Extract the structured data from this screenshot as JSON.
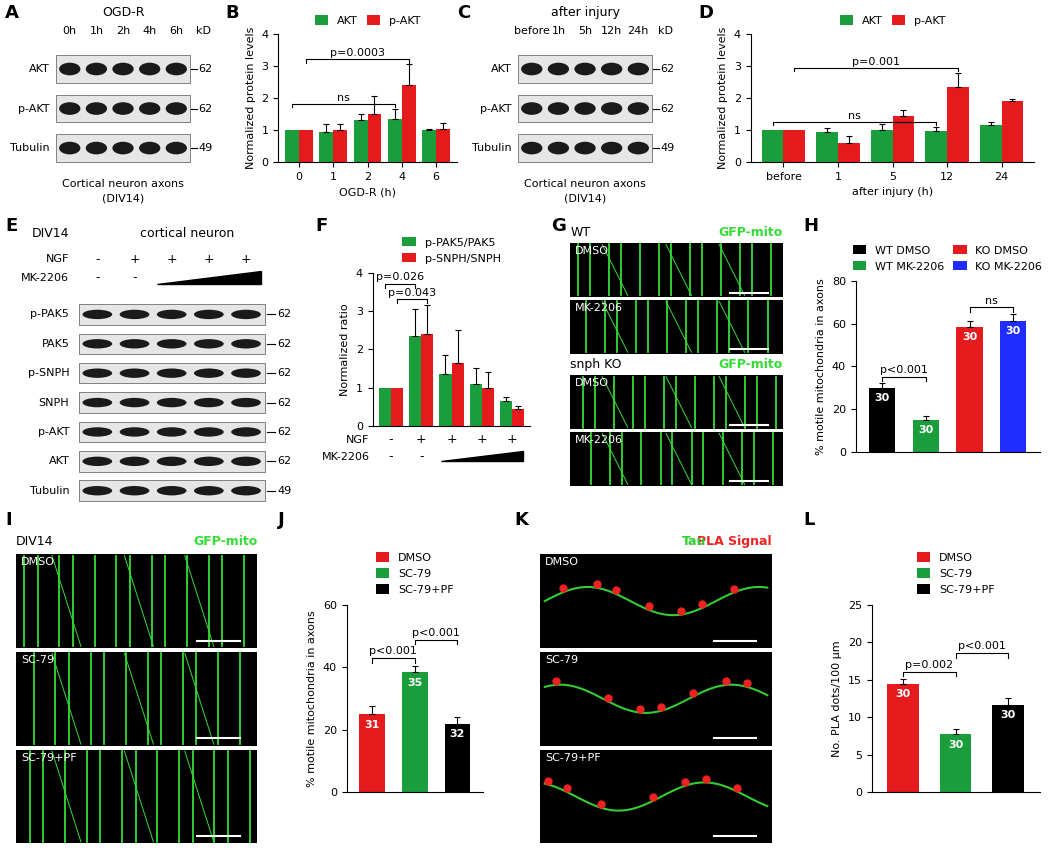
{
  "chart_data": [
    {
      "panel": "B",
      "type": "bar",
      "categories": [
        "0",
        "1",
        "2",
        "4",
        "6"
      ],
      "xlabel": "OGD-R (h)",
      "ylabel": "Normalized protein levels",
      "ylim": [
        0,
        4
      ],
      "yticks": [
        0,
        1,
        2,
        3,
        4
      ],
      "legend": "top",
      "series": [
        {
          "name": "AKT",
          "color": "#1a9e3b",
          "values": [
            1,
            0.95,
            1.3,
            1.35,
            1.0
          ],
          "errors": [
            0,
            0.25,
            0.2,
            0.3,
            0.03
          ]
        },
        {
          "name": "p-AKT",
          "color": "#e41a1c",
          "values": [
            1,
            1.0,
            1.5,
            2.4,
            1.02
          ],
          "errors": [
            0,
            0.2,
            0.55,
            0.65,
            0.2
          ]
        }
      ],
      "annotations": [
        {
          "text": "ns",
          "series": 0,
          "from": 0,
          "to": 3
        },
        {
          "text": "p=0.0003",
          "series": 1,
          "from": 0,
          "to": 3
        }
      ]
    },
    {
      "panel": "D",
      "type": "bar",
      "categories": [
        "before",
        "1",
        "5",
        "12",
        "24"
      ],
      "xlabel": "after injury (h)",
      "ylabel": "Normalized protein levels",
      "ylim": [
        0,
        4
      ],
      "yticks": [
        0,
        1,
        2,
        3,
        4
      ],
      "legend": "top",
      "series": [
        {
          "name": "AKT",
          "color": "#1a9e3b",
          "values": [
            1,
            0.95,
            1.0,
            0.98,
            1.15
          ],
          "errors": [
            0,
            0.12,
            0.2,
            0.1,
            0.1
          ]
        },
        {
          "name": "p-AKT",
          "color": "#e41a1c",
          "values": [
            1,
            0.6,
            1.45,
            2.35,
            1.92
          ],
          "errors": [
            0,
            0.2,
            0.17,
            0.42,
            0.06
          ]
        }
      ],
      "annotations": [
        {
          "text": "ns",
          "series": 0,
          "from": 0,
          "to": 3
        },
        {
          "text": "p=0.001",
          "series": 1,
          "from": 0,
          "to": 3
        }
      ]
    },
    {
      "panel": "F",
      "type": "bar",
      "categories": [
        null,
        null,
        null,
        null,
        null
      ],
      "ylabel": "Normalized ratio",
      "ylim": [
        0,
        4
      ],
      "yticks": [
        0,
        1,
        2,
        3,
        4
      ],
      "legend": "top",
      "tick_labels": "y",
      "conditions": [
        {
          "name": "NGF",
          "values": [
            "-",
            "+",
            "+",
            "+",
            "+"
          ]
        },
        {
          "name": "MK-2206",
          "values": [
            "-",
            "-",
            null,
            null,
            null
          ]
        }
      ],
      "series": [
        {
          "name": "p-PAK5/PAK5",
          "color": "#1a9e3b",
          "values": [
            1,
            2.35,
            1.35,
            1.1,
            0.65
          ],
          "errors": [
            0,
            0.7,
            0.5,
            0.4,
            0.1
          ]
        },
        {
          "name": "p-SNPH/SNPH",
          "color": "#e41a1c",
          "values": [
            1,
            2.4,
            1.65,
            1.0,
            0.45
          ],
          "errors": [
            0,
            0.75,
            0.85,
            0.4,
            0.08
          ]
        }
      ],
      "annotations": [
        {
          "text": "p=0.043",
          "series": 1,
          "from": 0,
          "to": 1
        },
        {
          "text": "p=0.026",
          "series": 0,
          "from": 0,
          "to": 1
        }
      ]
    },
    {
      "panel": "H",
      "type": "bar",
      "categories": [
        "WT DMSO",
        "WT MK-2206",
        "KO DMSO",
        "KO MK-2206"
      ],
      "colors": [
        "#000000",
        "#1a9e3b",
        "#e41a1c",
        "#1f2eff"
      ],
      "values": [
        30,
        15,
        58.5,
        61.5
      ],
      "errors": [
        2,
        1.5,
        3,
        3
      ],
      "n": [
        30,
        30,
        30,
        30
      ],
      "ylabel": "% motile mitochondria in axons",
      "ylim": [
        0,
        80
      ],
      "yticks": [
        0,
        20,
        40,
        60,
        80
      ],
      "legend": "top",
      "tick_labels": "y",
      "annotations": [
        {
          "text": "p<0.001",
          "from": 0,
          "to": 1
        },
        {
          "text": "ns",
          "from": 2,
          "to": 3
        }
      ]
    },
    {
      "panel": "J",
      "type": "bar",
      "categories": [
        "DMSO",
        "SC-79",
        "SC-79+PF"
      ],
      "colors": [
        "#e41a1c",
        "#1a9e3b",
        "#000000"
      ],
      "values": [
        25,
        38.5,
        22
      ],
      "errors": [
        2.5,
        2,
        2
      ],
      "n": [
        31,
        35,
        32
      ],
      "ylabel": "% motile mitochondria in axons",
      "ylim": [
        0,
        60
      ],
      "yticks": [
        0,
        20,
        40,
        60
      ],
      "legend": "top",
      "tick_labels": "y",
      "annotations": [
        {
          "text": "p<0.001",
          "from": 0,
          "to": 1
        },
        {
          "text": "p<0.001",
          "from": 1,
          "to": 2
        }
      ]
    },
    {
      "panel": "L",
      "type": "bar",
      "categories": [
        "DMSO",
        "SC-79",
        "SC-79+PF"
      ],
      "colors": [
        "#e41a1c",
        "#1a9e3b",
        "#000000"
      ],
      "values": [
        14.5,
        7.8,
        11.7
      ],
      "errors": [
        0.6,
        0.6,
        0.9
      ],
      "n": [
        30,
        30,
        30
      ],
      "ylabel": "No. PLA dots/100 µm",
      "ylim": [
        0,
        25
      ],
      "yticks": [
        0,
        5,
        10,
        15,
        20,
        25
      ],
      "legend": "top",
      "tick_labels": "y",
      "annotations": [
        {
          "text": "p=0.002",
          "from": 0,
          "to": 1
        },
        {
          "text": "p<0.001",
          "from": 1,
          "to": 2
        }
      ]
    }
  ],
  "blots": [
    {
      "panel": "A",
      "header": [
        "OGD-R"
      ],
      "lanes": [
        "0h",
        "1h",
        "2h",
        "4h",
        "6h"
      ],
      "kD_title": "kD",
      "rows": [
        {
          "name": "AKT",
          "kD": 62
        },
        {
          "name": "p-AKT",
          "kD": 62
        },
        {
          "name": "Tubulin",
          "kD": 49
        }
      ],
      "caption": [
        "Cortical neuron axons",
        "(DIV14)"
      ]
    },
    {
      "panel": "C",
      "header": [
        "after injury"
      ],
      "lanes": [
        "before",
        "1h",
        "5h",
        "12h",
        "24h"
      ],
      "kD_title": "kD",
      "rows": [
        {
          "name": "AKT",
          "kD": 62
        },
        {
          "name": "p-AKT",
          "kD": 62
        },
        {
          "name": "Tubulin",
          "kD": 49
        }
      ],
      "caption": [
        "Cortical neuron axons",
        "(DIV14)"
      ]
    },
    {
      "panel": "E",
      "header": [
        "DIV14",
        "cortical neuron"
      ],
      "conditions": [
        {
          "name": "NGF",
          "values": [
            "-",
            "+",
            "+",
            "+",
            "+"
          ]
        },
        {
          "name": "MK-2206",
          "values": [
            "-",
            "-",
            null,
            null,
            null
          ]
        }
      ],
      "rows": [
        {
          "name": "p-PAK5",
          "kD": 62
        },
        {
          "name": "PAK5",
          "kD": 62
        },
        {
          "name": "p-SNPH",
          "kD": 62
        },
        {
          "name": "SNPH",
          "kD": 62
        },
        {
          "name": "p-AKT",
          "kD": 62
        },
        {
          "name": "AKT",
          "kD": 62
        },
        {
          "name": "Tubulin",
          "kD": 49
        }
      ]
    }
  ],
  "micrographs": [
    {
      "panel": "G",
      "groups": [
        {
          "title": "WT",
          "channels": [
            {
              "name": "GFP-mito",
              "color": "#33dd33"
            }
          ],
          "rows": [
            "DMSO",
            "MK-2206"
          ]
        },
        {
          "title": "snph KO",
          "channels": [
            {
              "name": "GFP-mito",
              "color": "#33dd33"
            }
          ],
          "rows": [
            "DMSO",
            "MK-2206"
          ]
        }
      ]
    },
    {
      "panel": "I",
      "groups": [
        {
          "title": "DIV14",
          "channels": [
            {
              "name": "GFP-mito",
              "color": "#33dd33"
            }
          ],
          "rows": [
            "DMSO",
            "SC-79",
            "SC-79+PF"
          ]
        }
      ]
    },
    {
      "panel": "K",
      "groups": [
        {
          "channels": [
            {
              "name": "Tau",
              "color": "#33cc33"
            },
            {
              "name": "PLA Signal",
              "color": "#ee2222"
            }
          ],
          "rows": [
            "DMSO",
            "SC-79",
            "SC-79+PF"
          ]
        }
      ]
    }
  ]
}
